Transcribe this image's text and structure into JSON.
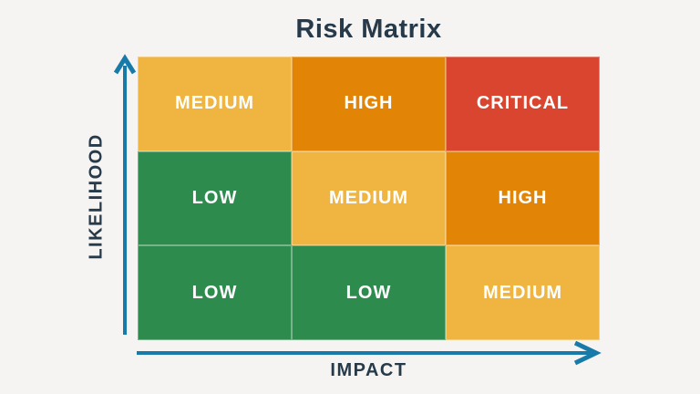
{
  "title": "Risk Matrix",
  "axes": {
    "y_label": "LIKELIHOOD",
    "x_label": "IMPACT"
  },
  "colors": {
    "low": "#2E8B4E",
    "medium": "#F0B440",
    "high": "#E28406",
    "critical": "#D9452F",
    "axis_blue": "#187AA9",
    "text_dark": "#273A4A",
    "cell_text": "#FFFFFF",
    "background": "#F5F4F2"
  },
  "matrix": {
    "rows": [
      [
        {
          "label": "MEDIUM",
          "level": "medium"
        },
        {
          "label": "HIGH",
          "level": "high"
        },
        {
          "label": "CRITICAL",
          "level": "critical"
        }
      ],
      [
        {
          "label": "LOW",
          "level": "low"
        },
        {
          "label": "MEDIUM",
          "level": "medium"
        },
        {
          "label": "HIGH",
          "level": "high"
        }
      ],
      [
        {
          "label": "LOW",
          "level": "low"
        },
        {
          "label": "LOW",
          "level": "low"
        },
        {
          "label": "MEDIUM",
          "level": "medium"
        }
      ]
    ]
  }
}
